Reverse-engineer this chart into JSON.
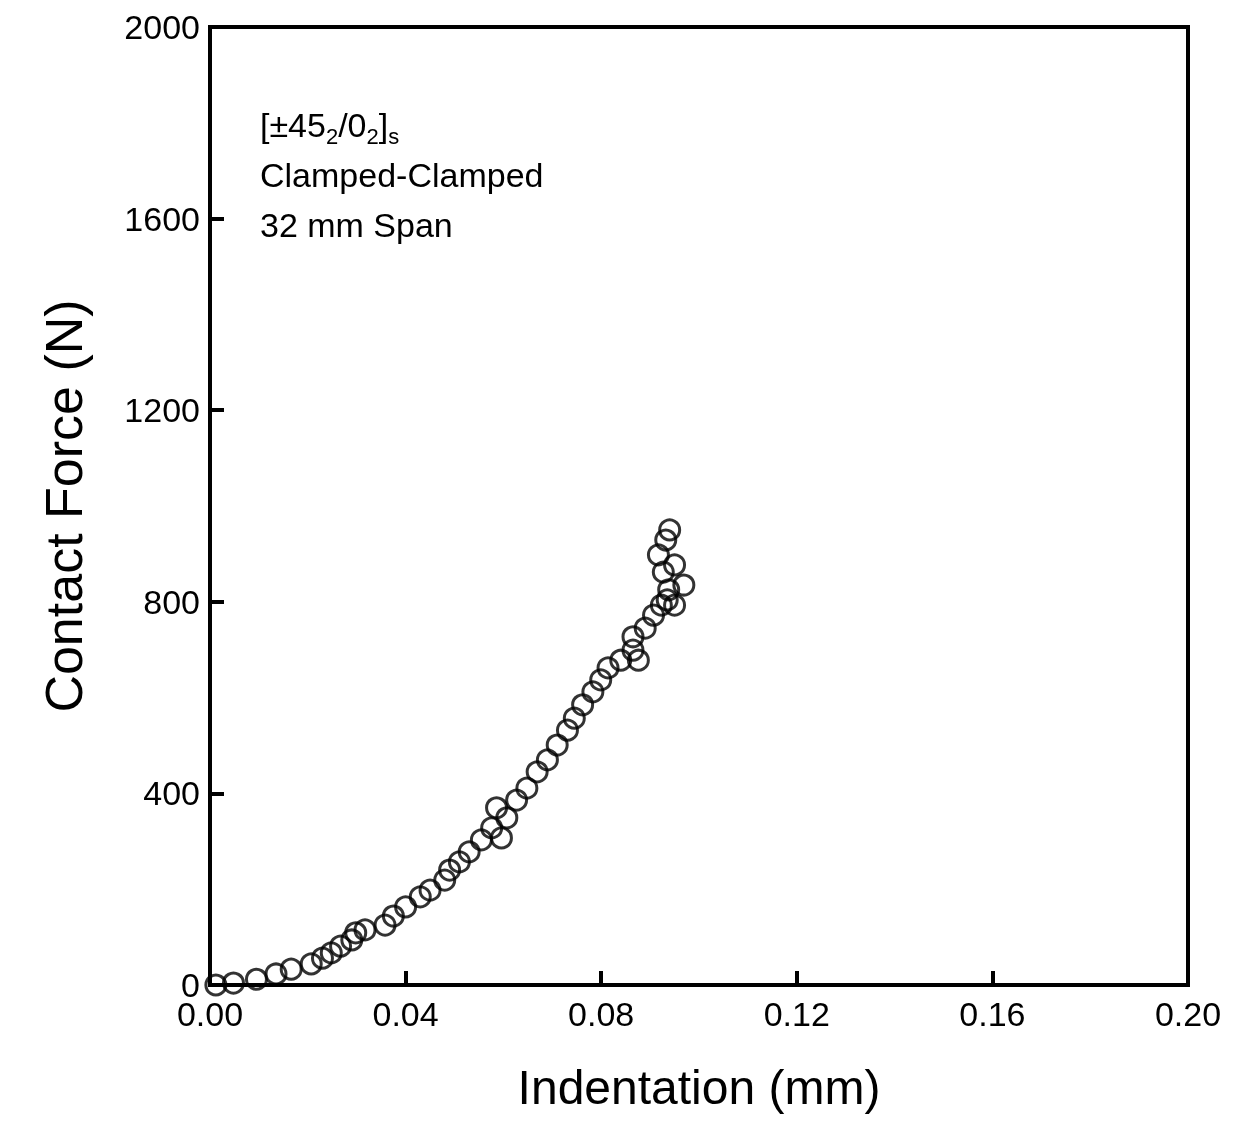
{
  "chart_data": {
    "type": "scatter",
    "xlabel": "Indentation (mm)",
    "ylabel": "Contact Force (N)",
    "annotations": [
      "[±45$_{2}$/0$_{2}$]$_{s}$",
      "Clamped-Clamped",
      "32 mm Span"
    ],
    "x": [
      0.0012,
      0.0048,
      0.0095,
      0.0135,
      0.0166,
      0.0207,
      0.023,
      0.0248,
      0.0267,
      0.029,
      0.0298,
      0.0317,
      0.0358,
      0.0375,
      0.04,
      0.043,
      0.045,
      0.048,
      0.049,
      0.051,
      0.053,
      0.0555,
      0.0576,
      0.0586,
      0.0596,
      0.0607,
      0.0627,
      0.0648,
      0.0669,
      0.069,
      0.071,
      0.0731,
      0.0745,
      0.0762,
      0.0783,
      0.0799,
      0.0814,
      0.084,
      0.0865,
      0.0876,
      0.0865,
      0.089,
      0.0907,
      0.0923,
      0.0938,
      0.095,
      0.0969,
      0.0927,
      0.0917,
      0.0932,
      0.094,
      0.095,
      0.0935
    ],
    "values": [
      0,
      4,
      12,
      23,
      33,
      44,
      56,
      67,
      81,
      94,
      109,
      115,
      125,
      144,
      163,
      184,
      198,
      219,
      240,
      257,
      278,
      303,
      328,
      370,
      307,
      349,
      386,
      411,
      445,
      470,
      501,
      532,
      557,
      585,
      612,
      637,
      662,
      678,
      699,
      678,
      727,
      745,
      772,
      793,
      825,
      793,
      835,
      862,
      898,
      929,
      950,
      877,
      804
    ],
    "color": "#000000",
    "marker": "circle",
    "grid": false,
    "xlim": [
      0,
      0.2
    ],
    "xticks": [
      {
        "value": 0,
        "label": "0.00"
      },
      0.04,
      0.08,
      0.12,
      0.16,
      {
        "value": 0.2,
        "label": "0.20"
      }
    ],
    "ylim": [
      0,
      2000
    ],
    "yticks": [
      0,
      400,
      800,
      1200,
      1600,
      2000
    ]
  }
}
